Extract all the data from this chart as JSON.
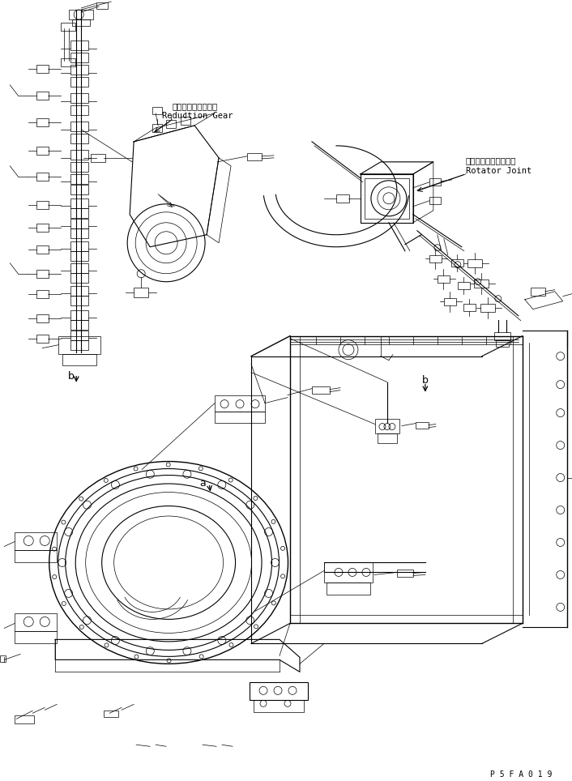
{
  "bg_color": "#ffffff",
  "line_color": "#000000",
  "fig_width": 7.06,
  "fig_height": 9.64,
  "dpi": 100,
  "label_reduction_gear_jp": "リダクションギヤー",
  "label_reduction_gear_en": "Reduction Gear",
  "label_rotator_joint_jp": "ローテータジョイント",
  "label_rotator_joint_en": "Rotator Joint",
  "label_b1": "b",
  "label_b2": "b",
  "label_a": "a",
  "watermark": "P 5 F A 0 1 9"
}
